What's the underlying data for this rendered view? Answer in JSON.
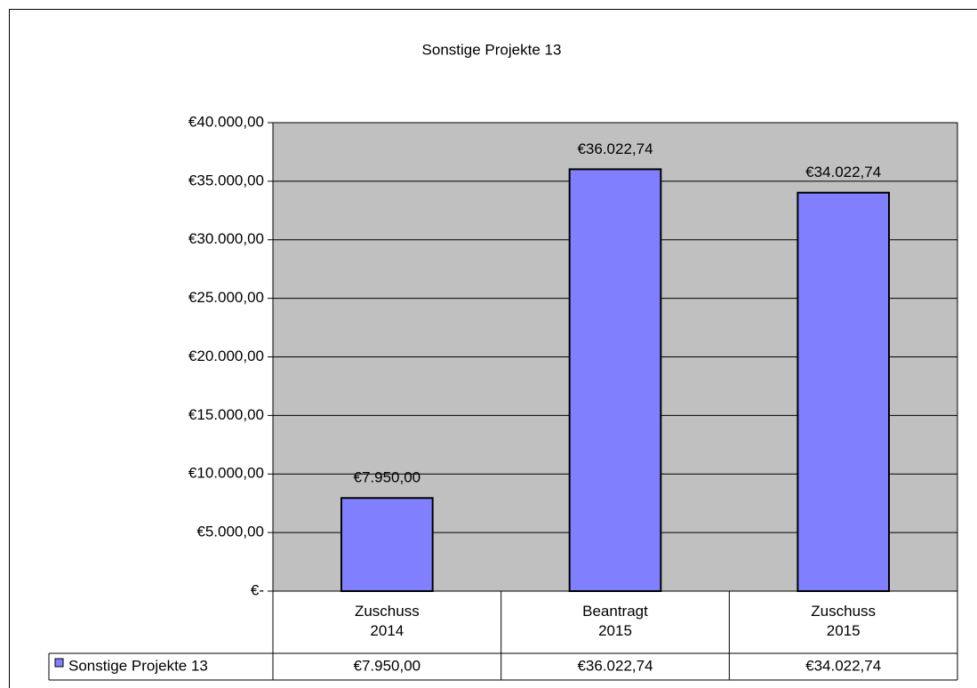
{
  "chart_data": {
    "type": "bar",
    "title": "Sonstige Projekte 13",
    "categories": [
      "Zuschuss 2014",
      "Beantragt 2015",
      "Zuschuss 2015"
    ],
    "series": [
      {
        "name": "Sonstige Projekte 13",
        "color": "#8080ff",
        "values": [
          7950,
          36022.74,
          34022.74
        ],
        "value_labels": [
          "€7.950,00",
          "€36.022,74",
          "€34.022,74"
        ]
      }
    ],
    "ylim": [
      0,
      40000
    ],
    "yticks": [
      {
        "value": 0,
        "label": "€-"
      },
      {
        "value": 5000,
        "label": "€5.000,00"
      },
      {
        "value": 10000,
        "label": "€10.000,00"
      },
      {
        "value": 15000,
        "label": "€15.000,00"
      },
      {
        "value": 20000,
        "label": "€20.000,00"
      },
      {
        "value": 25000,
        "label": "€25.000,00"
      },
      {
        "value": 30000,
        "label": "€30.000,00"
      },
      {
        "value": 35000,
        "label": "€35.000,00"
      },
      {
        "value": 40000,
        "label": "€40.000,00"
      }
    ],
    "grid": true,
    "plot_background": "#c0c0c0",
    "data_table": true
  }
}
